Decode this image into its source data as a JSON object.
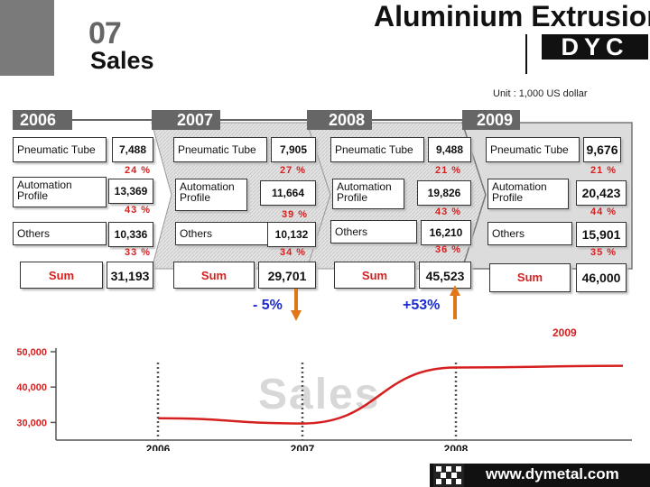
{
  "header": {
    "slide_number": "07",
    "section_title": "Sales",
    "brand_title": "Aluminium Extrusion",
    "brand_sub": "DYC",
    "unit": "Unit : 1,000 US dollar"
  },
  "years": [
    {
      "year": "2006",
      "rows": [
        {
          "label": "Pneumatic Tube",
          "value": "7,488",
          "pct": "24 %"
        },
        {
          "label": "Automation Profile",
          "value": "13,369",
          "pct": "43 %"
        },
        {
          "label": "Others",
          "value": "10,336",
          "pct": "33 %"
        }
      ],
      "sum_label": "Sum",
      "sum_value": "31,193"
    },
    {
      "year": "2007",
      "rows": [
        {
          "label": "Pneumatic Tube",
          "value": "7,905",
          "pct": "27 %"
        },
        {
          "label": "Automation Profile",
          "value": "11,664",
          "pct": "39 %"
        },
        {
          "label": "Others",
          "value": "10,132",
          "pct": "34 %"
        }
      ],
      "sum_label": "Sum",
      "sum_value": "29,701",
      "change": "- 5%"
    },
    {
      "year": "2008",
      "rows": [
        {
          "label": "Pneumatic Tube",
          "value": "9,488",
          "pct": "21 %"
        },
        {
          "label": "Automation Profile",
          "value": "19,826",
          "pct": "43 %"
        },
        {
          "label": "Others",
          "value": "16,210",
          "pct": "36 %"
        }
      ],
      "sum_label": "Sum",
      "sum_value": "45,523",
      "change": "+53%"
    },
    {
      "year": "2009",
      "rows": [
        {
          "label": "Pneumatic Tube",
          "value": "9,676",
          "pct": "21 %"
        },
        {
          "label": "Automation Profile",
          "value": "20,423",
          "pct": "44 %"
        },
        {
          "label": "Others",
          "value": "15,901",
          "pct": "35 %"
        }
      ],
      "sum_label": "Sum",
      "sum_value": "46,000"
    }
  ],
  "chart": {
    "year_marker": "2009",
    "watermark": "Sales",
    "y_ticks": [
      "50,000",
      "40,000",
      "30,000"
    ],
    "x_ticks": [
      "2006",
      "2007",
      "2008"
    ]
  },
  "chart_data": {
    "type": "line",
    "x": [
      "2006",
      "2007",
      "2008",
      "2009"
    ],
    "series": [
      {
        "values": [
          31193,
          29701,
          45523,
          46000
        ]
      }
    ],
    "ylim": [
      25000,
      50000
    ],
    "yticks": [
      30000,
      40000,
      50000
    ],
    "xlabel": "",
    "ylabel": "",
    "title": "",
    "grid": false,
    "colors": {
      "line": "#d62020",
      "axis": "#555555"
    }
  },
  "footer": {
    "website": "www.dymetal.com"
  },
  "colors": {
    "accent_red": "#d62020",
    "blue": "#1a2bd0",
    "orange": "#e07818",
    "gray_tab": "#666666"
  }
}
